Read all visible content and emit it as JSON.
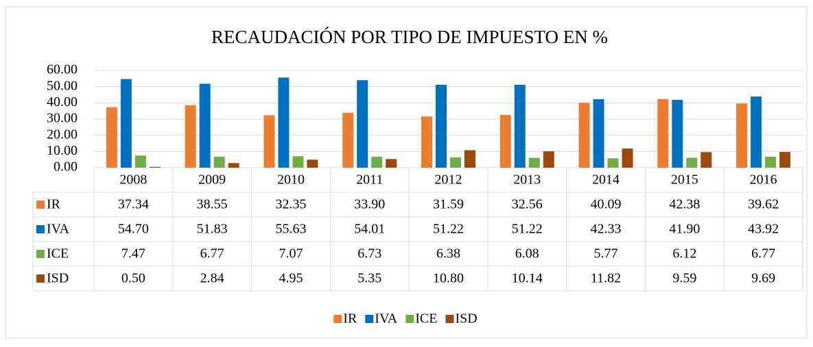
{
  "chart_data": {
    "type": "bar",
    "title": "RECAUDACIÓN POR TIPO DE IMPUESTO EN %",
    "categories": [
      "2008",
      "2009",
      "2010",
      "2011",
      "2012",
      "2013",
      "2014",
      "2015",
      "2016"
    ],
    "series": [
      {
        "name": "IR",
        "color": "#ed7d31",
        "values": [
          37.34,
          38.55,
          32.35,
          33.9,
          31.59,
          32.56,
          40.09,
          42.38,
          39.62
        ],
        "value_labels": [
          "37.34",
          "38.55",
          "32.35",
          "33.90",
          "31.59",
          "32.56",
          "40.09",
          "42.38",
          "39.62"
        ]
      },
      {
        "name": "IVA",
        "color": "#0070c0",
        "values": [
          54.7,
          51.83,
          55.63,
          54.01,
          51.22,
          51.22,
          42.33,
          41.9,
          43.92
        ],
        "value_labels": [
          "54.70",
          "51.83",
          "55.63",
          "54.01",
          "51.22",
          "51.22",
          "42.33",
          "41.90",
          "43.92"
        ]
      },
      {
        "name": "ICE",
        "color": "#70ad47",
        "values": [
          7.47,
          6.77,
          7.07,
          6.73,
          6.38,
          6.08,
          5.77,
          6.12,
          6.77
        ],
        "value_labels": [
          "7.47",
          "6.77",
          "7.07",
          "6.73",
          "6.38",
          "6.08",
          "5.77",
          "6.12",
          "6.77"
        ]
      },
      {
        "name": "ISD",
        "color": "#9e480e",
        "values": [
          0.5,
          2.84,
          4.95,
          5.35,
          10.8,
          10.14,
          11.82,
          9.59,
          9.69
        ],
        "value_labels": [
          "0.50",
          "2.84",
          "4.95",
          "5.35",
          "10.80",
          "10.14",
          "11.82",
          "9.59",
          "9.69"
        ]
      }
    ],
    "ylim": [
      0,
      60
    ],
    "yticks": [
      {
        "value": 0,
        "label": "0.00"
      },
      {
        "value": 10,
        "label": "10.00"
      },
      {
        "value": 20,
        "label": "20.00"
      },
      {
        "value": 30,
        "label": "30.00"
      },
      {
        "value": 40,
        "label": "40.00"
      },
      {
        "value": 50,
        "label": "50.00"
      },
      {
        "value": 60,
        "label": "60.00"
      }
    ],
    "grid": true,
    "legend": "bottom"
  }
}
